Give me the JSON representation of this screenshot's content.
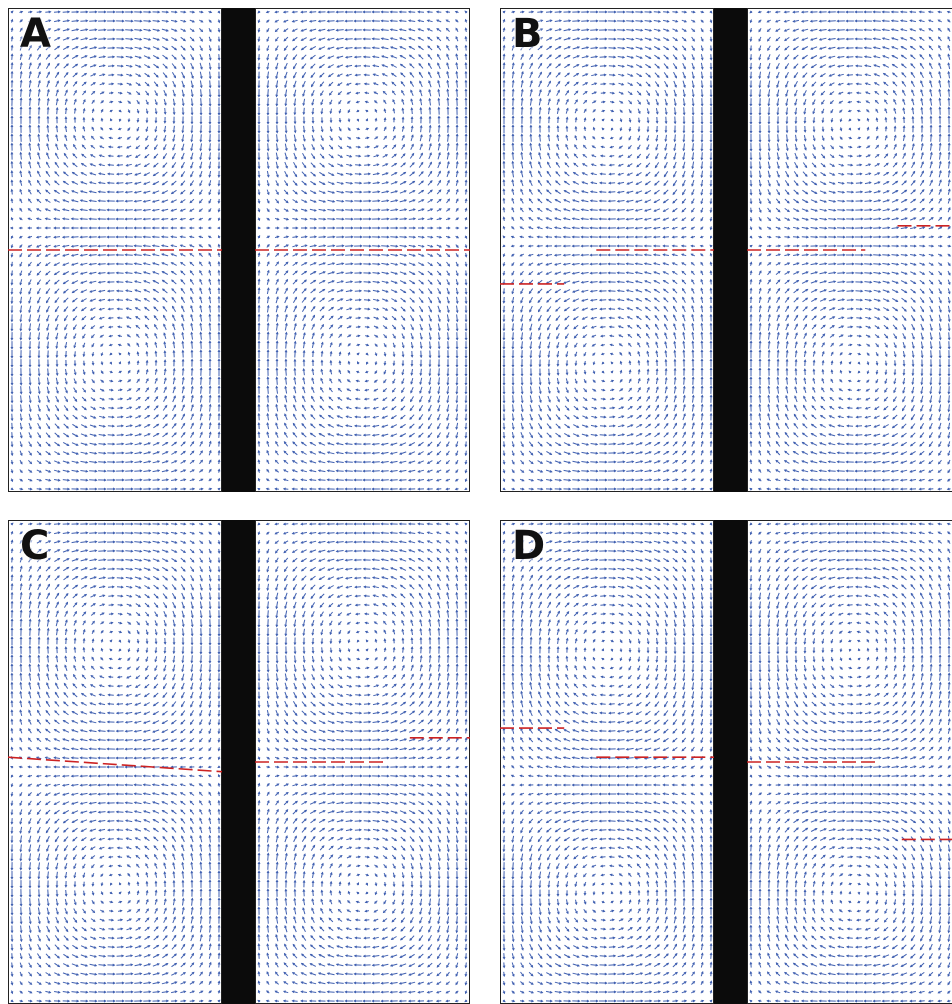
{
  "colors": {
    "vector": "#3f5fb0",
    "interface": "#cc2222",
    "barrier": "#0b0b0b",
    "frame": "#222222"
  },
  "panels": [
    {
      "label": "A",
      "interface": [
        {
          "side": "left",
          "level": 0.5,
          "x0": 0.0,
          "x1": 1.0,
          "slope": 0.0
        },
        {
          "side": "right",
          "level": 0.5,
          "x0": 0.0,
          "x1": 1.0,
          "slope": 0.0
        }
      ]
    },
    {
      "label": "B",
      "interface": [
        {
          "side": "left",
          "level": 0.57,
          "x0": 0.0,
          "x1": 0.3,
          "slope": 0.0
        },
        {
          "side": "left",
          "level": 0.5,
          "x0": 0.45,
          "x1": 1.0,
          "slope": 0.0
        },
        {
          "side": "right",
          "level": 0.5,
          "x0": 0.0,
          "x1": 0.55,
          "slope": 0.0
        },
        {
          "side": "right",
          "level": 0.45,
          "x0": 0.7,
          "x1": 1.0,
          "slope": 0.0
        }
      ]
    },
    {
      "label": "C",
      "interface": [
        {
          "side": "left",
          "level": 0.49,
          "x0": 0.0,
          "x1": 1.0,
          "slope": 0.03
        },
        {
          "side": "right",
          "level": 0.5,
          "x0": 0.0,
          "x1": 0.6,
          "slope": 0.0
        },
        {
          "side": "right",
          "level": 0.45,
          "x0": 0.72,
          "x1": 1.0,
          "slope": 0.0
        }
      ]
    },
    {
      "label": "D",
      "interface": [
        {
          "side": "left",
          "level": 0.43,
          "x0": 0.0,
          "x1": 0.3,
          "slope": 0.0
        },
        {
          "side": "left",
          "level": 0.49,
          "x0": 0.45,
          "x1": 1.0,
          "slope": 0.0
        },
        {
          "side": "right",
          "level": 0.5,
          "x0": 0.0,
          "x1": 0.6,
          "slope": 0.0
        },
        {
          "side": "right",
          "level": 0.66,
          "x0": 0.72,
          "x1": 1.0,
          "slope": 0.0
        }
      ]
    }
  ]
}
